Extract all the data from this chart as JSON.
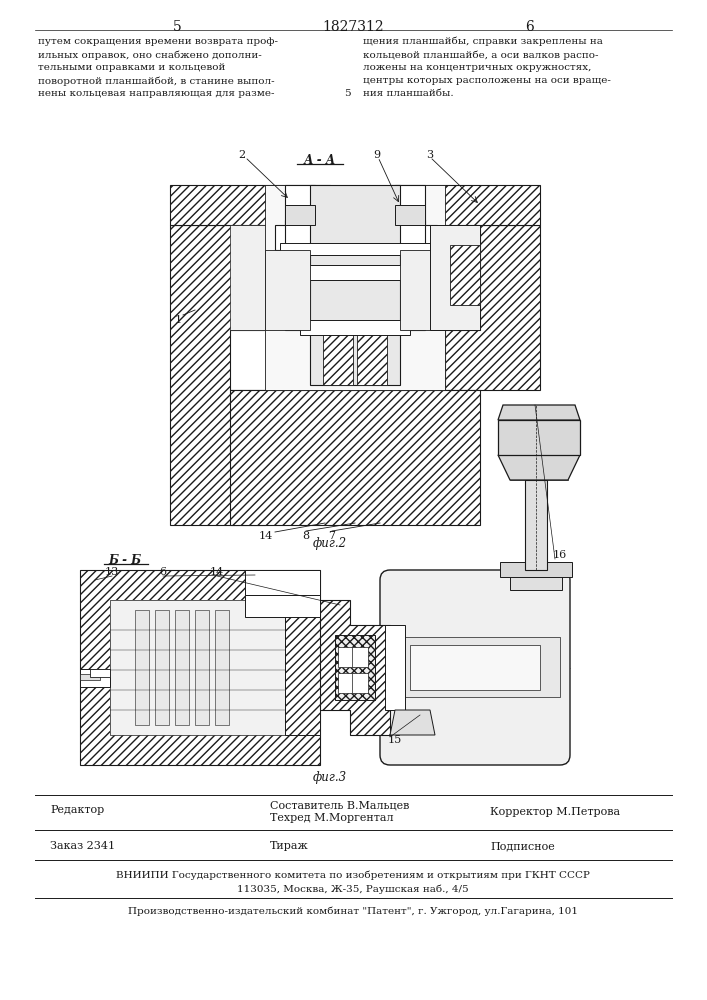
{
  "page_number_left": "5",
  "patent_number": "1827312",
  "page_number_right": "6",
  "text_left": "путем сокращения времени возврата проф-\nильных оправок, оно снабжено дополни-\nтельными оправками и кольцевой\nповоротной планшайбой, в станине выпол-\nнены кольцевая направляющая для разме-",
  "text_right": "щения планшайбы, справки закреплены на\nкольцевой планшайбе, а оси валков распо-\nложены на концентричных окружностях,\nцентры которых расположены на оси враще-\nния планшайбы.",
  "num5": "5",
  "fig2_label": "фиг.2",
  "fig2_section_label": "А - А",
  "fig3_label": "фиг.3",
  "fig3_section_label": "Б - Б",
  "editor_line": "Редактор",
  "composer_line": "Составитель В.Мальцев",
  "techred_line": "Техред М.Моргентал",
  "corrector_line": "Корректор М.Петрова",
  "order_line": "Заказ 2341",
  "tirazh_line": "Тираж",
  "podpisnoe_line": "Подписное",
  "vniiipi_line": "ВНИИПИ Государственного комитета по изобретениям и открытиям при ГКНТ СССР",
  "address_line": "113035, Москва, Ж-35, Раушская наб., 4/5",
  "producer_line": "Производственно-издательский комбинат \"Патент\", г. Ужгород, ул.Гагарина, 101",
  "bg_color": "#ffffff",
  "text_color": "#1a1a1a",
  "line_color": "#1a1a1a",
  "hatch_gray": "#888888",
  "fill_hatch_face": "#ffffff",
  "fill_gray": "#cccccc"
}
